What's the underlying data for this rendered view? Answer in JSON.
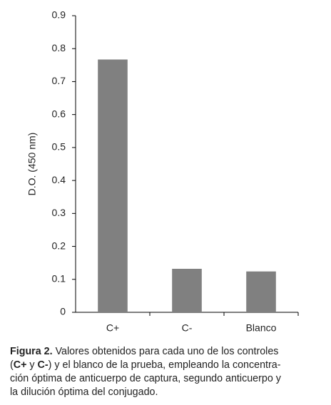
{
  "chart_data": {
    "type": "bar",
    "y_label": "D.O. (450 nm)",
    "categories": [
      "C+",
      "C-",
      "Blanco"
    ],
    "values": [
      0.767,
      0.132,
      0.124
    ],
    "color": "#808080",
    "ylim": [
      0,
      0.9
    ],
    "yticks": [
      0,
      0.1,
      0.2,
      0.3,
      0.4,
      0.5,
      0.6,
      0.7,
      0.8,
      0.9
    ]
  },
  "caption": [
    "Figura 2.",
    " Valores obtenidos para cada uno de los controles",
    "(",
    "C+",
    " y ",
    "C-",
    ") y el blanco de la prueba, empleando la concentra-",
    "ción óptima de anticuerpo de captura, segundo anticuerpo y",
    "la dilución óptima del conjugado."
  ]
}
